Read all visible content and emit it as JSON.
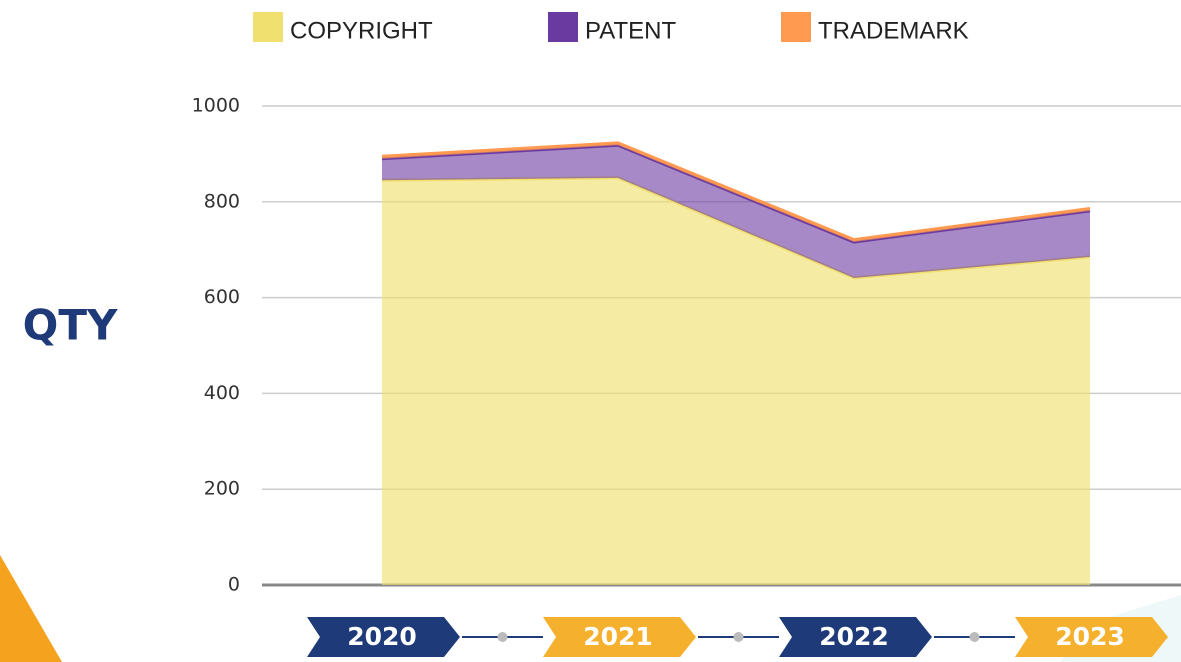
{
  "chart_data": {
    "type": "stacked_area",
    "y_label": "QTY",
    "categories": [
      "2020",
      "2021",
      "2022",
      "2023"
    ],
    "series": [
      {
        "name": "COPYRIGHT",
        "color": "#f0e070",
        "values": [
          845,
          850,
          641,
          685
        ]
      },
      {
        "name": "PATENT",
        "color": "#6a3aa0",
        "values": [
          45,
          68,
          75,
          96
        ]
      },
      {
        "name": "TRADEMARK",
        "color": "#ff9a50",
        "values": [
          5,
          5,
          5,
          5
        ]
      }
    ],
    "ylim": [
      0,
      1000
    ],
    "yticks": [
      0,
      200,
      400,
      600,
      800,
      1000
    ],
    "grid": true
  }
}
